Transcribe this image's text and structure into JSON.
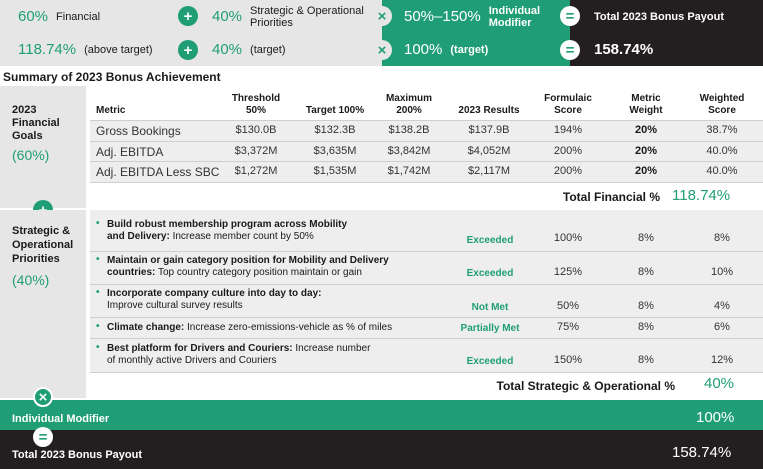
{
  "top": {
    "row1": {
      "financial_pct": "60%",
      "financial_label": "Financial",
      "plus": "+",
      "strategic_pct": "40%",
      "strategic_label": "Strategic & Operational Priorities",
      "times": "×",
      "modifier_range": "50%–150%",
      "modifier_label": "Individual Modifier",
      "equals": "=",
      "payout_label": "Total 2023 Bonus Payout"
    },
    "row2": {
      "financial_value": "118.74%",
      "financial_note": "(above target)",
      "plus": "+",
      "strategic_value": "40%",
      "strategic_note": "(target)",
      "times": "×",
      "modifier_value": "100%",
      "modifier_note": "(target)",
      "equals": "=",
      "payout_value": "158.74%"
    }
  },
  "summary_title": "Summary of 2023 Bonus Achievement",
  "financial": {
    "side_label_1": "2023",
    "side_label_2": "Financial",
    "side_label_3": "Goals",
    "side_pct": "(60%)",
    "headers": {
      "metric": "Metric",
      "threshold_1": "Threshold",
      "threshold_2": "50%",
      "target": "Target 100%",
      "maximum_1": "Maximum",
      "maximum_2": "200%",
      "results": "2023 Results",
      "score_1": "Formulaic",
      "score_2": "Score",
      "weight_1": "Metric",
      "weight_2": "Weight",
      "weighted_1": "Weighted",
      "weighted_2": "Score"
    },
    "rows": [
      {
        "metric": "Gross Bookings",
        "threshold": "$130.0B",
        "target": "$132.3B",
        "maximum": "$138.2B",
        "results": "$137.9B",
        "score": "194%",
        "weight": "20%",
        "weighted": "38.7%"
      },
      {
        "metric": "Adj. EBITDA",
        "threshold": "$3,372M",
        "target": "$3,635M",
        "maximum": "$3,842M",
        "results": "$4,052M",
        "score": "200%",
        "weight": "20%",
        "weighted": "40.0%"
      },
      {
        "metric": "Adj. EBITDA Less SBC",
        "threshold": "$1,272M",
        "target": "$1,535M",
        "maximum": "$1,742M",
        "results": "$2,117M",
        "score": "200%",
        "weight": "20%",
        "weighted": "40.0%"
      }
    ],
    "total_label": "Total Financial %",
    "total_value": "118.74%"
  },
  "plus_symbol": "+",
  "strategic": {
    "side_label_1": "Strategic &",
    "side_label_2": "Operational",
    "side_label_3": "Priorities",
    "side_pct": "(40%)",
    "bullet": "•",
    "rows": [
      {
        "title": "Build robust membership program across Mobility and Delivery:",
        "title_1": "Build robust membership program across Mobility",
        "title_2": "and Delivery:",
        "desc": "Increase member count by 50%",
        "status": "Exceeded",
        "score": "100%",
        "weight": "8%",
        "weighted": "8%"
      },
      {
        "title_1": "Maintain or gain category position for Mobility and Delivery",
        "title_2": "countries:",
        "desc": "Top country category position maintain or gain",
        "status": "Exceeded",
        "score": "125%",
        "weight": "8%",
        "weighted": "10%"
      },
      {
        "title_1": "Incorporate company culture into day to day:",
        "desc": "Improve cultural survey results",
        "status": "Not Met",
        "score": "50%",
        "weight": "8%",
        "weighted": "4%"
      },
      {
        "title_1": "Climate change:",
        "desc": "Increase zero-emissions-vehicle as % of miles",
        "status": "Partially Met",
        "score": "75%",
        "weight": "8%",
        "weighted": "6%"
      },
      {
        "title_1": "Best platform for Drivers and Couriers:",
        "desc": "Increase number",
        "desc_2": "of monthly active Drivers and Couriers",
        "status": "Exceeded",
        "score": "150%",
        "weight": "8%",
        "weighted": "12%"
      }
    ],
    "total_label": "Total Strategic & Operational %",
    "total_value": "40%"
  },
  "times_symbol": "×",
  "modifier": {
    "label": "Individual Modifier",
    "value": "100%"
  },
  "equals_symbol": "=",
  "payout": {
    "label": "Total 2023 Bonus Payout",
    "value": "158.74%"
  }
}
